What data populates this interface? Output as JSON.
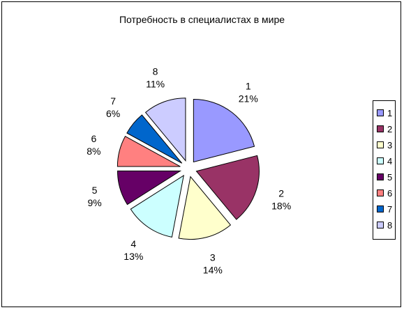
{
  "chart_data": {
    "type": "pie",
    "title": "Потребность в специалистах в мире",
    "categories": [
      "1",
      "2",
      "3",
      "4",
      "5",
      "6",
      "7",
      "8"
    ],
    "values": [
      21,
      18,
      14,
      13,
      9,
      8,
      6,
      11
    ],
    "value_labels": [
      "21%",
      "18%",
      "14%",
      "13%",
      "9%",
      "8%",
      "6%",
      "11%"
    ],
    "colors": [
      "#9999ff",
      "#993366",
      "#ffffcc",
      "#ccffff",
      "#660066",
      "#ff8080",
      "#0066cc",
      "#ccccff"
    ],
    "exploded": true,
    "legend_position": "right"
  }
}
